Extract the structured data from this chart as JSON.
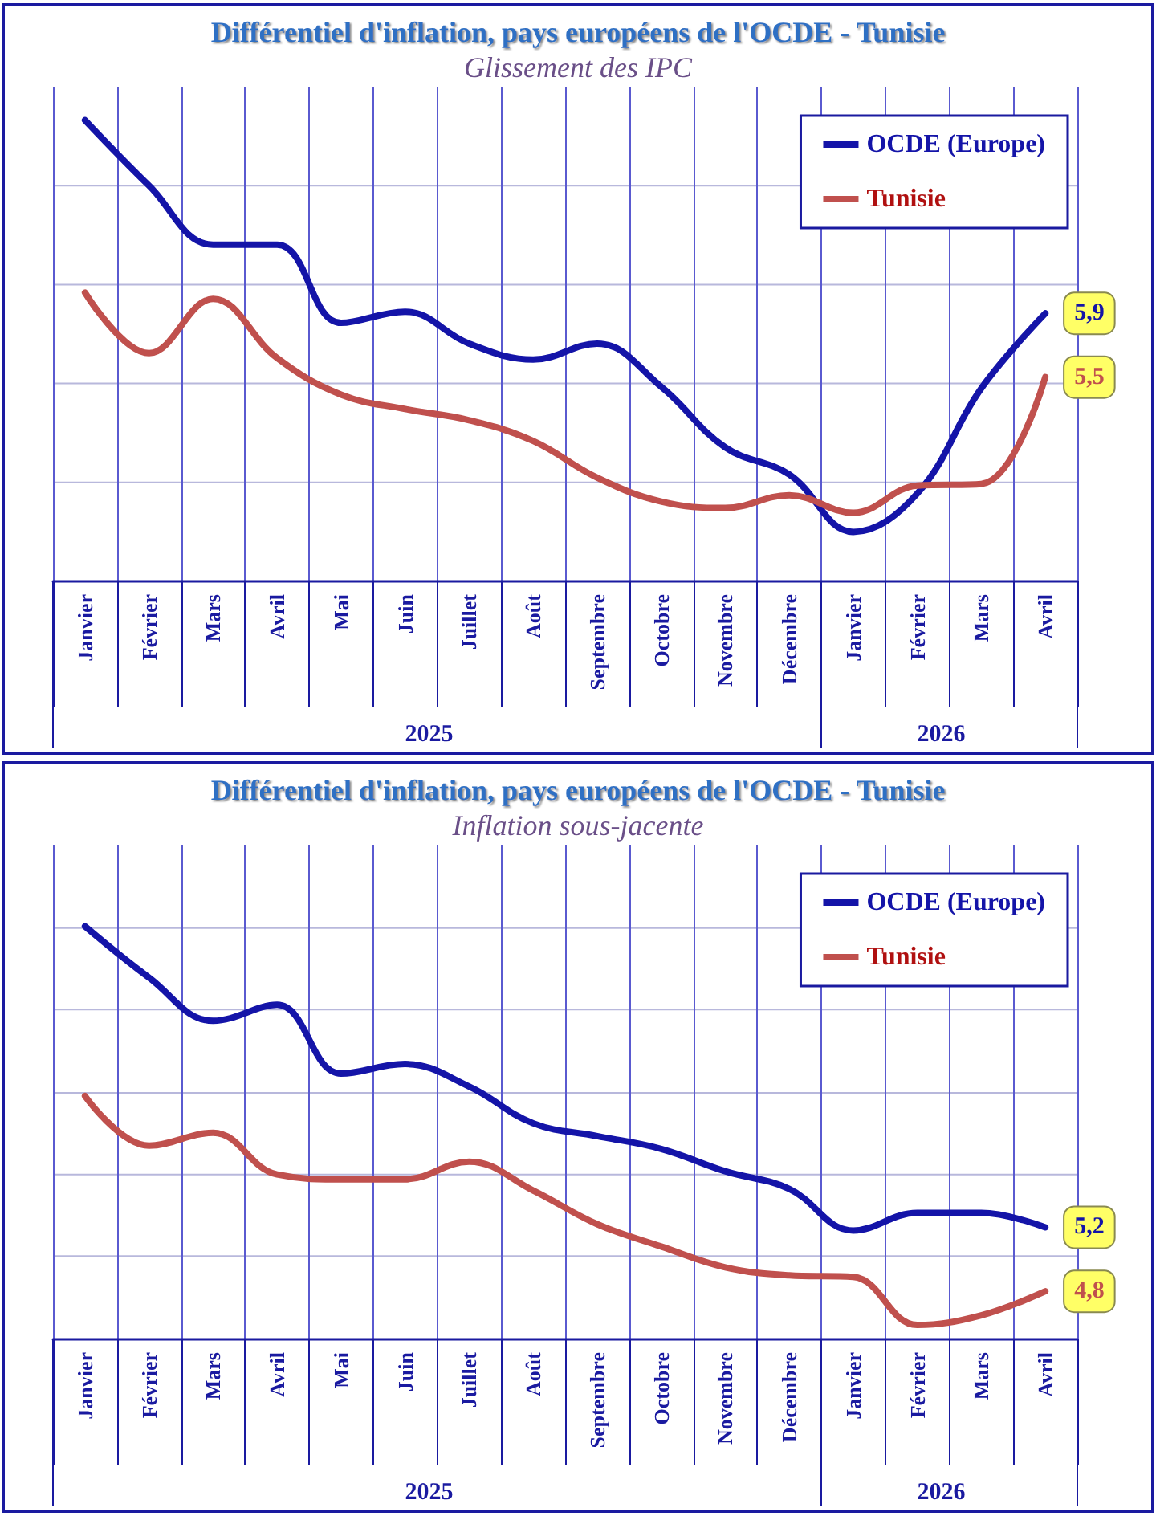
{
  "chart_data": [
    {
      "type": "line",
      "title": "Différentiel d'inflation, pays européens de l'OCDE - Tunisie",
      "subtitle": "Glissement des IPC",
      "grid": true,
      "legend": "top right",
      "marker": "none",
      "line_style": "solid",
      "tick_labels": "x",
      "ylim": [
        4.22,
        7.32
      ],
      "yticks": [
        {
          "value": 4.84,
          "label": null
        },
        {
          "value": 5.46,
          "label": null
        },
        {
          "value": 6.08,
          "label": null
        },
        {
          "value": 6.7,
          "label": null
        }
      ],
      "categories": [
        "Janvier",
        "Février",
        "Mars",
        "Avril",
        "Mai",
        "Juin",
        "Juillet",
        "Août",
        "Septembre",
        "Octobre",
        "Novembre",
        "Décembre",
        "Janvier",
        "Février",
        "Mars",
        "Avril"
      ],
      "annotations": [
        "2025",
        "2026"
      ],
      "series": [
        {
          "name": "OCDE (Europe)",
          "color": "#1414a8",
          "values": [
            7.11,
            6.7,
            6.33,
            6.33,
            5.84,
            5.91,
            5.71,
            5.61,
            5.71,
            5.44,
            5.06,
            4.89,
            4.53,
            4.77,
            5.43,
            5.9
          ],
          "value_labels": [
            null,
            null,
            null,
            null,
            null,
            null,
            null,
            null,
            null,
            null,
            null,
            null,
            null,
            null,
            null,
            "5,9"
          ]
        },
        {
          "name": "Tunisie",
          "color": "#c0504d",
          "values": [
            6.03,
            5.65,
            5.99,
            5.62,
            5.39,
            5.3,
            5.23,
            5.1,
            4.87,
            4.72,
            4.68,
            4.76,
            4.65,
            4.82,
            4.83,
            5.5
          ],
          "value_labels": [
            null,
            null,
            null,
            null,
            null,
            null,
            null,
            null,
            null,
            null,
            null,
            null,
            null,
            null,
            null,
            "5,5"
          ]
        }
      ]
    },
    {
      "type": "line",
      "title": "Différentiel d'inflation, pays européens de l'OCDE - Tunisie",
      "subtitle": "Inflation sous-jacente",
      "grid": true,
      "legend": "top right",
      "marker": "none",
      "line_style": "solid",
      "tick_labels": "x",
      "ylim": [
        4.5,
        7.59
      ],
      "yticks": [
        {
          "value": 5.02,
          "label": null
        },
        {
          "value": 5.53,
          "label": null
        },
        {
          "value": 6.04,
          "label": null
        },
        {
          "value": 6.56,
          "label": null
        },
        {
          "value": 7.07,
          "label": null
        }
      ],
      "categories": [
        "Janvier",
        "Février",
        "Mars",
        "Avril",
        "Mai",
        "Juin",
        "Juillet",
        "Août",
        "Septembre",
        "Octobre",
        "Novembre",
        "Décembre",
        "Janvier",
        "Février",
        "Mars",
        "Avril"
      ],
      "annotations": [
        "2025",
        "2026"
      ],
      "series": [
        {
          "name": "OCDE (Europe)",
          "color": "#1414a8",
          "values": [
            7.08,
            6.76,
            6.49,
            6.59,
            6.16,
            6.22,
            6.08,
            5.85,
            5.77,
            5.69,
            5.55,
            5.44,
            5.18,
            5.29,
            5.29,
            5.2
          ],
          "value_labels": [
            null,
            null,
            null,
            null,
            null,
            null,
            null,
            null,
            null,
            null,
            null,
            null,
            null,
            null,
            null,
            "5,2"
          ]
        },
        {
          "name": "Tunisie",
          "color": "#c0504d",
          "values": [
            6.02,
            5.71,
            5.79,
            5.53,
            5.5,
            5.5,
            5.61,
            5.43,
            5.22,
            5.08,
            4.95,
            4.9,
            4.89,
            4.59,
            4.65,
            4.8
          ],
          "value_labels": [
            null,
            null,
            null,
            null,
            null,
            null,
            null,
            null,
            null,
            null,
            null,
            null,
            null,
            null,
            null,
            "4,8"
          ]
        }
      ]
    }
  ]
}
